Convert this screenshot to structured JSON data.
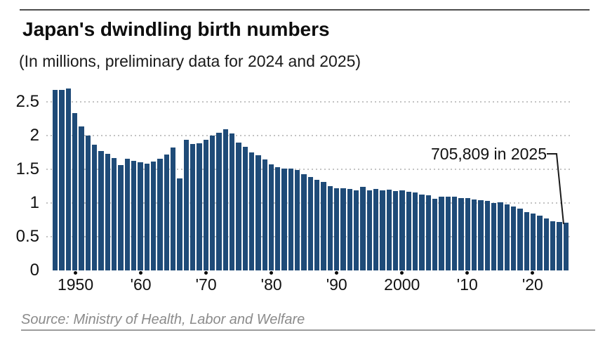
{
  "header": {
    "title": "Japan's dwindling birth numbers",
    "subtitle": "(In millions, preliminary data for 2024 and 2025)"
  },
  "chart_data": {
    "type": "bar",
    "title": "Japan's dwindling birth numbers",
    "subtitle": "(In millions, preliminary data for 2024 and 2025)",
    "unit": "millions of births per year",
    "categories": [
      1947,
      1948,
      1949,
      1950,
      1951,
      1952,
      1953,
      1954,
      1955,
      1956,
      1957,
      1958,
      1959,
      1960,
      1961,
      1962,
      1963,
      1964,
      1965,
      1966,
      1967,
      1968,
      1969,
      1970,
      1971,
      1972,
      1973,
      1974,
      1975,
      1976,
      1977,
      1978,
      1979,
      1980,
      1981,
      1982,
      1983,
      1984,
      1985,
      1986,
      1987,
      1988,
      1989,
      1990,
      1991,
      1992,
      1993,
      1994,
      1995,
      1996,
      1997,
      1998,
      1999,
      2000,
      2001,
      2002,
      2003,
      2004,
      2005,
      2006,
      2007,
      2008,
      2009,
      2010,
      2011,
      2012,
      2013,
      2014,
      2015,
      2016,
      2017,
      2018,
      2019,
      2020,
      2021,
      2022,
      2023,
      2024,
      2025
    ],
    "values": [
      2.679,
      2.682,
      2.697,
      2.338,
      2.138,
      2.005,
      1.868,
      1.77,
      1.731,
      1.665,
      1.567,
      1.653,
      1.626,
      1.606,
      1.589,
      1.619,
      1.66,
      1.717,
      1.824,
      1.361,
      1.936,
      1.872,
      1.89,
      1.934,
      2.001,
      2.039,
      2.092,
      2.03,
      1.901,
      1.833,
      1.755,
      1.709,
      1.643,
      1.577,
      1.529,
      1.515,
      1.509,
      1.49,
      1.432,
      1.383,
      1.347,
      1.314,
      1.247,
      1.222,
      1.223,
      1.209,
      1.188,
      1.238,
      1.187,
      1.207,
      1.192,
      1.203,
      1.178,
      1.191,
      1.171,
      1.154,
      1.124,
      1.111,
      1.063,
      1.093,
      1.09,
      1.091,
      1.07,
      1.071,
      1.051,
      1.037,
      1.03,
      1.004,
      1.006,
      0.977,
      0.946,
      0.918,
      0.865,
      0.841,
      0.812,
      0.771,
      0.727,
      0.721,
      0.706
    ],
    "ylim": [
      0,
      2.74
    ],
    "yticks": [
      {
        "value": 0,
        "label": "0"
      },
      {
        "value": 0.5,
        "label": "0.5"
      },
      {
        "value": 1,
        "label": "1"
      },
      {
        "value": 1.5,
        "label": "1.5"
      },
      {
        "value": 2,
        "label": "2"
      },
      {
        "value": 2.5,
        "label": "2.5"
      }
    ],
    "xticks": [
      {
        "year": 1950,
        "label": "1950"
      },
      {
        "year": 1960,
        "label": "'60"
      },
      {
        "year": 1970,
        "label": "'70"
      },
      {
        "year": 1980,
        "label": "'80"
      },
      {
        "year": 1990,
        "label": "'90"
      },
      {
        "year": 2000,
        "label": "2000"
      },
      {
        "year": 2010,
        "label": "'10"
      },
      {
        "year": 2020,
        "label": "'20"
      }
    ],
    "grid": "horizontal dotted, legend none",
    "bar_color": "#1f4b78",
    "gridline_color": "#c3c3c3",
    "annotation": {
      "text": "705,809 in 2025",
      "target_year": 2025,
      "value_millions": 0.706
    }
  },
  "source": {
    "text": "Source: Ministry of Health, Labor and Welfare"
  }
}
